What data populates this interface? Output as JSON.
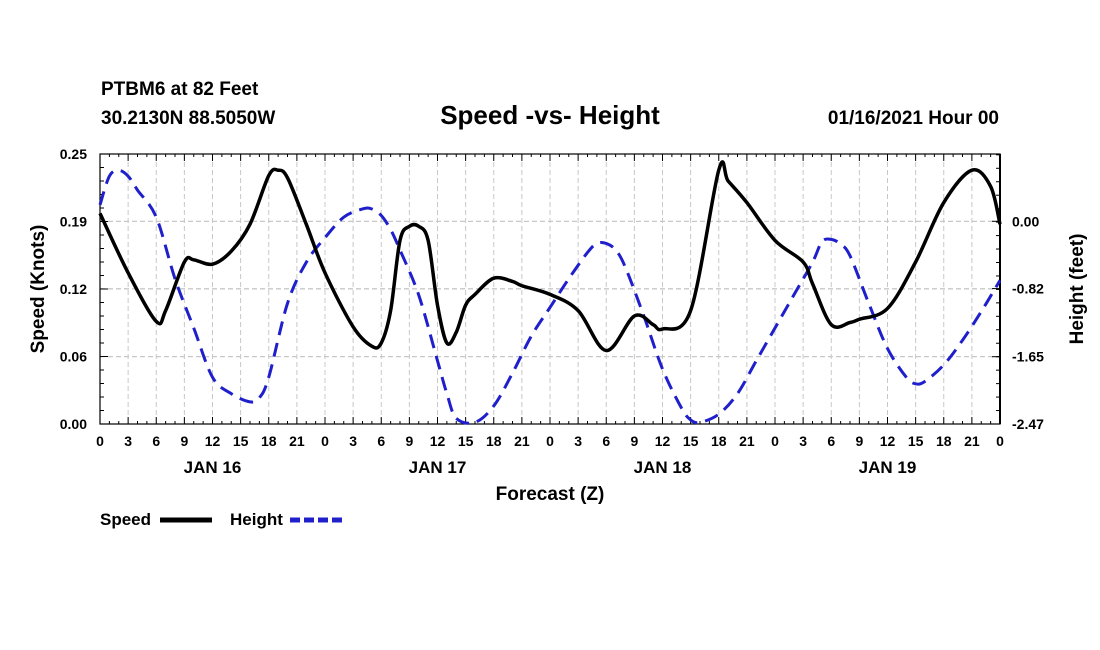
{
  "header": {
    "station": "PTBM6 at 82 Feet",
    "coords": "30.2130N 88.5050W",
    "title": "Speed -vs- Height",
    "datetime": "01/16/2021 Hour 00"
  },
  "legend": {
    "items": [
      {
        "label": "Speed",
        "color": "#000000",
        "dash": false
      },
      {
        "label": "Height",
        "color": "#1f1fcc",
        "dash": true
      }
    ]
  },
  "chart_data": {
    "type": "line",
    "title": "Speed -vs- Height",
    "xlabel": "Forecast (Z)",
    "ylabel": "Speed (Knots)",
    "y2label": "Height (feet)",
    "xlim": [
      0,
      96
    ],
    "ylim": [
      0,
      0.25
    ],
    "y2lim": [
      -2.47,
      0.82
    ],
    "grid": true,
    "x_tick_positions": [
      0,
      3,
      6,
      9,
      12,
      15,
      18,
      21,
      24,
      27,
      30,
      33,
      36,
      39,
      42,
      45,
      48,
      51,
      54,
      57,
      60,
      63,
      66,
      69,
      72,
      75,
      78,
      81,
      84,
      87,
      90,
      93,
      96
    ],
    "x_tick_labels": [
      "0",
      "3",
      "6",
      "9",
      "12",
      "15",
      "18",
      "21",
      "0",
      "3",
      "6",
      "9",
      "12",
      "15",
      "18",
      "21",
      "0",
      "3",
      "6",
      "9",
      "12",
      "15",
      "18",
      "21",
      "0",
      "3",
      "6",
      "9",
      "12",
      "15",
      "18",
      "21",
      "0"
    ],
    "y_ticks": [
      "0.00",
      "0.06",
      "0.12",
      "0.19",
      "0.25"
    ],
    "y_tick_values": [
      0,
      0.0625,
      0.125,
      0.1875,
      0.25
    ],
    "y2_ticks": [
      "-2.47",
      "-1.65",
      "-0.82",
      "0.00"
    ],
    "y2_tick_values": [
      -2.47,
      -1.65,
      -0.82,
      0.0
    ],
    "day_labels": [
      {
        "label": "JAN 16",
        "x": 12
      },
      {
        "label": "JAN 17",
        "x": 36
      },
      {
        "label": "JAN 18",
        "x": 60
      },
      {
        "label": "JAN 19",
        "x": 84
      }
    ],
    "series": [
      {
        "name": "Speed",
        "axis": "left",
        "color": "#000000",
        "x": [
          0,
          3,
          6,
          7,
          9,
          10,
          12,
          14,
          16,
          18,
          19,
          20,
          22,
          24,
          27,
          29,
          30,
          31,
          32,
          33,
          34,
          35,
          36,
          37,
          38,
          39,
          40,
          42,
          44,
          45,
          48,
          51,
          54,
          57,
          59,
          60,
          63,
          66,
          67,
          69,
          72,
          75,
          76,
          78,
          80,
          81,
          84,
          87,
          90,
          93,
          95,
          96
        ],
        "values": [
          0.195,
          0.14,
          0.095,
          0.105,
          0.15,
          0.152,
          0.148,
          0.16,
          0.185,
          0.23,
          0.235,
          0.228,
          0.185,
          0.14,
          0.09,
          0.072,
          0.075,
          0.105,
          0.17,
          0.183,
          0.183,
          0.17,
          0.11,
          0.075,
          0.085,
          0.11,
          0.12,
          0.135,
          0.132,
          0.128,
          0.12,
          0.105,
          0.068,
          0.1,
          0.092,
          0.088,
          0.105,
          0.235,
          0.225,
          0.205,
          0.17,
          0.15,
          0.13,
          0.092,
          0.094,
          0.097,
          0.107,
          0.15,
          0.205,
          0.235,
          0.22,
          0.185
        ]
      },
      {
        "name": "Height",
        "axis": "right",
        "color": "#1f1fcc",
        "dash": true,
        "x": [
          0,
          1,
          2,
          3,
          4,
          6,
          8,
          10,
          12,
          14,
          16,
          17,
          18,
          20,
          22,
          24,
          26,
          28,
          29,
          30,
          31,
          32,
          34,
          36,
          37,
          38,
          40,
          42,
          44,
          46,
          48,
          50,
          52,
          53,
          54,
          55,
          56,
          58,
          60,
          62,
          63,
          64,
          66,
          68,
          70,
          72,
          74,
          76,
          77,
          78,
          79,
          80,
          82,
          84,
          86,
          87,
          88,
          90,
          92,
          94,
          96
        ],
        "values": [
          0.2,
          0.55,
          0.62,
          0.55,
          0.38,
          0.05,
          -0.7,
          -1.3,
          -1.9,
          -2.1,
          -2.2,
          -2.15,
          -1.9,
          -1.0,
          -0.5,
          -0.2,
          0.05,
          0.15,
          0.15,
          0.07,
          -0.1,
          -0.35,
          -0.9,
          -1.7,
          -2.1,
          -2.4,
          -2.45,
          -2.25,
          -1.85,
          -1.4,
          -1.05,
          -0.7,
          -0.38,
          -0.27,
          -0.27,
          -0.35,
          -0.55,
          -1.15,
          -1.8,
          -2.27,
          -2.42,
          -2.45,
          -2.35,
          -2.1,
          -1.7,
          -1.3,
          -0.9,
          -0.5,
          -0.25,
          -0.22,
          -0.28,
          -0.42,
          -1.0,
          -1.55,
          -1.9,
          -1.98,
          -1.95,
          -1.75,
          -1.45,
          -1.1,
          -0.72
        ]
      }
    ]
  }
}
